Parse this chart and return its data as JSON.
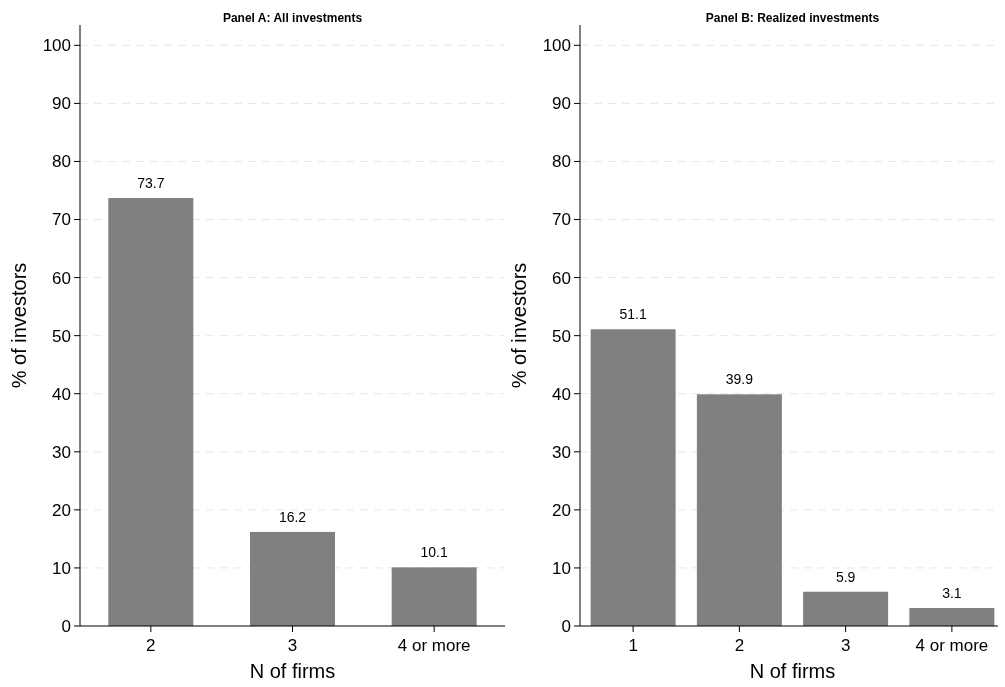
{
  "chart_data": [
    {
      "type": "bar",
      "title": "Panel A: All investments",
      "xlabel": "N of firms",
      "ylabel": "% of investors",
      "categories": [
        "2",
        "3",
        "4 or more"
      ],
      "values": [
        73.7,
        16.2,
        10.1
      ],
      "color": "#808080",
      "ylim": [
        0,
        103.5
      ],
      "yticks": [
        0,
        10,
        20,
        30,
        40,
        50,
        60,
        70,
        80,
        90,
        100
      ],
      "grid": "y",
      "data_labels": true
    },
    {
      "type": "bar",
      "title": "Panel B: Realized investments",
      "xlabel": "N of firms",
      "ylabel": "% of investors",
      "categories": [
        "1",
        "2",
        "3",
        "4 or more"
      ],
      "values": [
        51.1,
        39.9,
        5.9,
        3.1
      ],
      "color": "#808080",
      "ylim": [
        0,
        103.5
      ],
      "yticks": [
        0,
        10,
        20,
        30,
        40,
        50,
        60,
        70,
        80,
        90,
        100
      ],
      "grid": "y",
      "data_labels": true
    }
  ]
}
